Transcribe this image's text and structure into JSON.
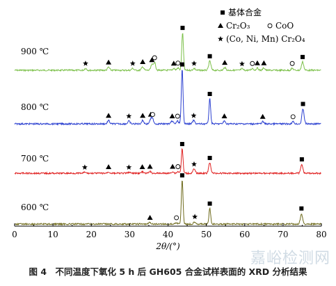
{
  "chart_data": {
    "type": "line",
    "xlabel": "2θ/(°)",
    "xlim": [
      0,
      80
    ],
    "xticks": [
      0,
      10,
      20,
      30,
      40,
      50,
      60,
      70,
      80
    ],
    "legend": {
      "placement": "top-right",
      "items": [
        {
          "marker": "square",
          "label": "基体合金"
        },
        {
          "marker": "triangle",
          "label": "Cr₂O₃"
        },
        {
          "marker": "circle",
          "label": "CoO"
        },
        {
          "marker": "star",
          "label": "(Co, Ni, Mn) Cr₂O₄"
        }
      ]
    },
    "series": [
      {
        "name": "900 ℃",
        "color": "#7cc04a",
        "peaks": [
          {
            "x": 18.5,
            "h": 0.05,
            "marker": "star"
          },
          {
            "x": 24.5,
            "h": 0.08,
            "marker": "triangle"
          },
          {
            "x": 30.8,
            "h": 0.05,
            "marker": "star"
          },
          {
            "x": 33.4,
            "h": 0.09,
            "marker": "triangle"
          },
          {
            "x": 35.8,
            "h": 0.14,
            "marker": "triangle"
          },
          {
            "x": 36.5,
            "h": 0.2,
            "marker": "circle"
          },
          {
            "x": 41.5,
            "h": 0.05,
            "marker": "triangle"
          },
          {
            "x": 42.6,
            "h": 0.06,
            "marker": "circle"
          },
          {
            "x": 43.8,
            "h": 0.98,
            "marker": "square"
          },
          {
            "x": 46.8,
            "h": 0.05,
            "marker": "star"
          },
          {
            "x": 50.9,
            "h": 0.24,
            "marker": "square"
          },
          {
            "x": 54.8,
            "h": 0.07,
            "marker": "triangle"
          },
          {
            "x": 59.3,
            "h": 0.04,
            "marker": "star"
          },
          {
            "x": 62.0,
            "h": 0.05,
            "marker": "circle"
          },
          {
            "x": 63.3,
            "h": 0.06,
            "marker": "triangle"
          },
          {
            "x": 65.0,
            "h": 0.06,
            "marker": "triangle"
          },
          {
            "x": 72.4,
            "h": 0.05,
            "marker": "circle"
          },
          {
            "x": 75.1,
            "h": 0.22,
            "marker": "square"
          }
        ]
      },
      {
        "name": "800 ℃",
        "color": "#2a3fd0",
        "peaks": [
          {
            "x": 24.5,
            "h": 0.06,
            "marker": "triangle"
          },
          {
            "x": 29.8,
            "h": 0.05,
            "marker": "star"
          },
          {
            "x": 33.4,
            "h": 0.06,
            "marker": "triangle"
          },
          {
            "x": 35.5,
            "h": 0.08,
            "marker": "triangle"
          },
          {
            "x": 36.0,
            "h": 0.08,
            "marker": "circle"
          },
          {
            "x": 41.1,
            "h": 0.05,
            "marker": "triangle"
          },
          {
            "x": 42.5,
            "h": 0.05,
            "marker": "circle"
          },
          {
            "x": 43.7,
            "h": 0.98,
            "marker": "square"
          },
          {
            "x": 46.7,
            "h": 0.06,
            "marker": "star"
          },
          {
            "x": 50.9,
            "h": 0.45,
            "marker": "square"
          },
          {
            "x": 54.7,
            "h": 0.05,
            "marker": "triangle"
          },
          {
            "x": 64.7,
            "h": 0.04,
            "marker": "triangle"
          },
          {
            "x": 72.6,
            "h": 0.04,
            "marker": "circle"
          },
          {
            "x": 75.2,
            "h": 0.27,
            "marker": "square"
          }
        ]
      },
      {
        "name": "700 ℃",
        "color": "#e02020",
        "peaks": [
          {
            "x": 18.3,
            "h": 0.03,
            "marker": "star"
          },
          {
            "x": 24.5,
            "h": 0.04,
            "marker": "triangle"
          },
          {
            "x": 29.8,
            "h": 0.03,
            "marker": "star"
          },
          {
            "x": 33.3,
            "h": 0.04,
            "marker": "triangle"
          },
          {
            "x": 35.3,
            "h": 0.05,
            "marker": "triangle"
          },
          {
            "x": 41.2,
            "h": 0.05,
            "marker": "triangle"
          },
          {
            "x": 42.6,
            "h": 0.05,
            "marker": "circle"
          },
          {
            "x": 43.7,
            "h": 0.7,
            "marker": "square"
          },
          {
            "x": 46.8,
            "h": 0.12,
            "marker": "star"
          },
          {
            "x": 50.9,
            "h": 0.3,
            "marker": "square"
          },
          {
            "x": 74.9,
            "h": 0.26,
            "marker": "square"
          }
        ]
      },
      {
        "name": "600 ℃",
        "color": "#6e6a1c",
        "peaks": [
          {
            "x": 35.3,
            "h": 0.03,
            "marker": "triangle"
          },
          {
            "x": 42.2,
            "h": 0.03,
            "marker": "circle"
          },
          {
            "x": 43.7,
            "h": 0.9,
            "marker": "square"
          },
          {
            "x": 47.0,
            "h": 0.05,
            "marker": "star"
          },
          {
            "x": 50.9,
            "h": 0.32,
            "marker": "square"
          },
          {
            "x": 74.8,
            "h": 0.22,
            "marker": "square"
          }
        ]
      }
    ]
  },
  "caption": "图 4　不同温度下氧化 5 h 后 GH605 合金试样表面的 XRD 分析结果",
  "watermark": "嘉峪检测网"
}
